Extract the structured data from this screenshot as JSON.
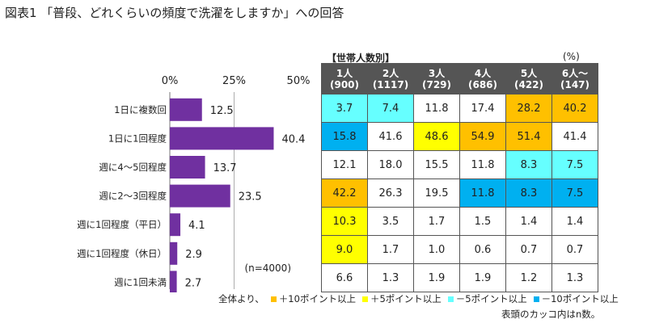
{
  "title": "図表1 「普段、どれくらいの頻度で洗濯をしますか」への回答",
  "colors": {
    "bar": "#7030a0",
    "plus10": "#ffc000",
    "plus5": "#ffff00",
    "minus5": "#66ffff",
    "minus10": "#00b0f0",
    "header_bg": "#555555"
  },
  "chart_data": [
    {
      "type": "bar",
      "orientation": "horizontal",
      "categories": [
        "1日に複数回",
        "1日に1回程度",
        "週に4～5回程度",
        "週に2～3回程度",
        "週に1回程度（平日）",
        "週に1回程度（休日）",
        "週に1回未満"
      ],
      "values": [
        12.5,
        40.4,
        13.7,
        23.5,
        4.1,
        2.9,
        2.7
      ],
      "xlim": [
        0,
        50
      ],
      "ticks": [
        "0%",
        "25%",
        "50%"
      ],
      "annotation": "(n=4000)"
    },
    {
      "type": "table",
      "label": "【世帯人数別】",
      "unit": "(%)",
      "columns": [
        {
          "name": "1人",
          "n": "(900)"
        },
        {
          "name": "2人",
          "n": "(1117)"
        },
        {
          "name": "3人",
          "n": "(729)"
        },
        {
          "name": "4人",
          "n": "(686)"
        },
        {
          "name": "5人",
          "n": "(422)"
        },
        {
          "name": "6人～",
          "n": "(147)"
        }
      ],
      "rows": [
        [
          3.7,
          7.4,
          11.8,
          17.4,
          28.2,
          40.2
        ],
        [
          15.8,
          41.6,
          48.6,
          54.9,
          51.4,
          41.4
        ],
        [
          12.1,
          18.0,
          15.5,
          11.8,
          8.3,
          7.5
        ],
        [
          42.2,
          26.3,
          19.5,
          11.8,
          8.3,
          7.5
        ],
        [
          10.3,
          3.5,
          1.7,
          1.5,
          1.4,
          1.4
        ],
        [
          9.0,
          1.7,
          1.0,
          0.6,
          0.7,
          0.7
        ],
        [
          6.6,
          1.3,
          1.9,
          1.9,
          1.2,
          1.3
        ]
      ],
      "highlights": [
        [
          "minus5",
          "minus5",
          "",
          "",
          "plus10",
          "plus10"
        ],
        [
          "minus10",
          "",
          "plus5",
          "plus10",
          "plus10",
          ""
        ],
        [
          "",
          "",
          "",
          "",
          "minus5",
          "minus5"
        ],
        [
          "plus10",
          "",
          "",
          "minus10",
          "minus10",
          "minus10"
        ],
        [
          "plus5",
          "",
          "",
          "",
          "",
          ""
        ],
        [
          "plus5",
          "",
          "",
          "",
          "",
          ""
        ],
        [
          "",
          "",
          "",
          "",
          "",
          ""
        ]
      ]
    }
  ],
  "legend": {
    "prefix": "全体より、",
    "items": [
      {
        "key": "plus10",
        "label": "＋10ポイント以上"
      },
      {
        "key": "plus5",
        "label": "＋5ポイント以上"
      },
      {
        "key": "minus5",
        "label": "－5ポイント以上"
      },
      {
        "key": "minus10",
        "label": "－10ポイント以上"
      }
    ]
  },
  "note": "表頭のカッコ内はn数。"
}
